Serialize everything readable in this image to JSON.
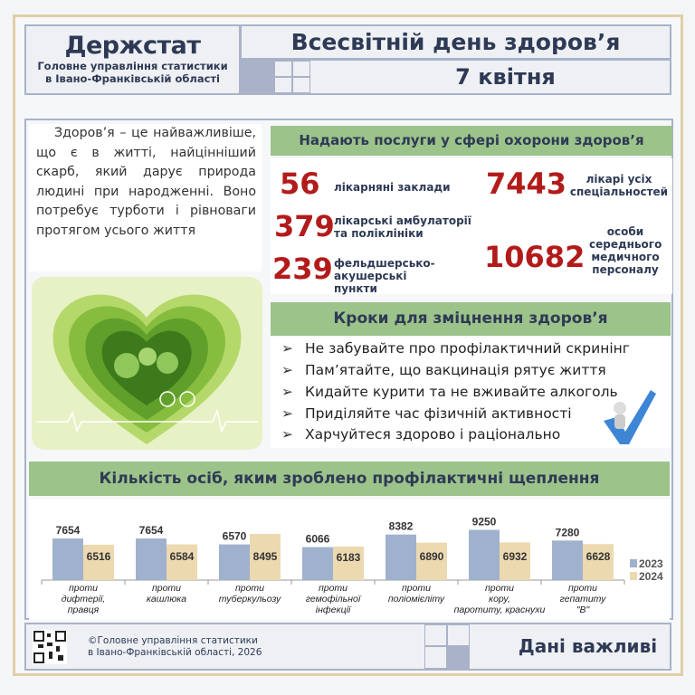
{
  "header": {
    "logo": "Держстат",
    "org_line1": "Головне управління статистики",
    "org_line2": "в Івано-Франківській області",
    "title": "Всесвітній день здоров’я",
    "date": "7 квітня"
  },
  "intro": "Здоров’я – це найважливіше, що є в житті, найцінніший скарб, який дарує природа людині при народженні. Воно потребує турботи і рівноваги протягом усього життя",
  "services": {
    "title": "Надають послуги у сфері охорони здоров’я",
    "items": [
      {
        "value": "56",
        "label": "лікарняні заклади"
      },
      {
        "value": "379",
        "label": "лікарські амбулаторії та поліклініки"
      },
      {
        "value": "239",
        "label": "фельдшерсько-акушерські пункти"
      },
      {
        "value": "7443",
        "label": "лікарі усіх спеціальностей"
      },
      {
        "value": "10682",
        "label": "особи середнього медичного персоналу"
      }
    ]
  },
  "steps": {
    "title": "Кроки для зміцнення здоров’я",
    "items": [
      "Не забувайте про профілактичний скринінг",
      "Пам’ятайте, що вакцинація рятує життя",
      "Кидайте курити та не вживайте алкоголь",
      "Приділяйте час фізичній активності",
      "Харчуйтеся здорово і раціонально"
    ]
  },
  "chart_title": "Кількість осіб, яким зроблено профілактичні щеплення",
  "chart_data": {
    "type": "bar",
    "categories": [
      "проти дифтерії, правця",
      "проти кашлюка",
      "проти туберкульозу",
      "проти гемофільної інфекції",
      "проти поліомієліту",
      "проти кору, паротиту, краснухи",
      "проти гепатиту \"В\""
    ],
    "series": [
      {
        "name": "2023",
        "values": [
          7654,
          7654,
          6570,
          6066,
          8382,
          9250,
          7280
        ],
        "color": "#9fb1cd"
      },
      {
        "name": "2024",
        "values": [
          6516,
          6584,
          8495,
          6183,
          6890,
          6932,
          6628
        ],
        "color": "#ecd9b0"
      }
    ],
    "legend": "right",
    "grid": false,
    "ylim": [
      0,
      12000
    ]
  },
  "footer": {
    "copyright_line1": "©Головне управління статистики",
    "copyright_line2": "в Івано-Франківській області, 2026",
    "slogan": "Дані важливі"
  }
}
